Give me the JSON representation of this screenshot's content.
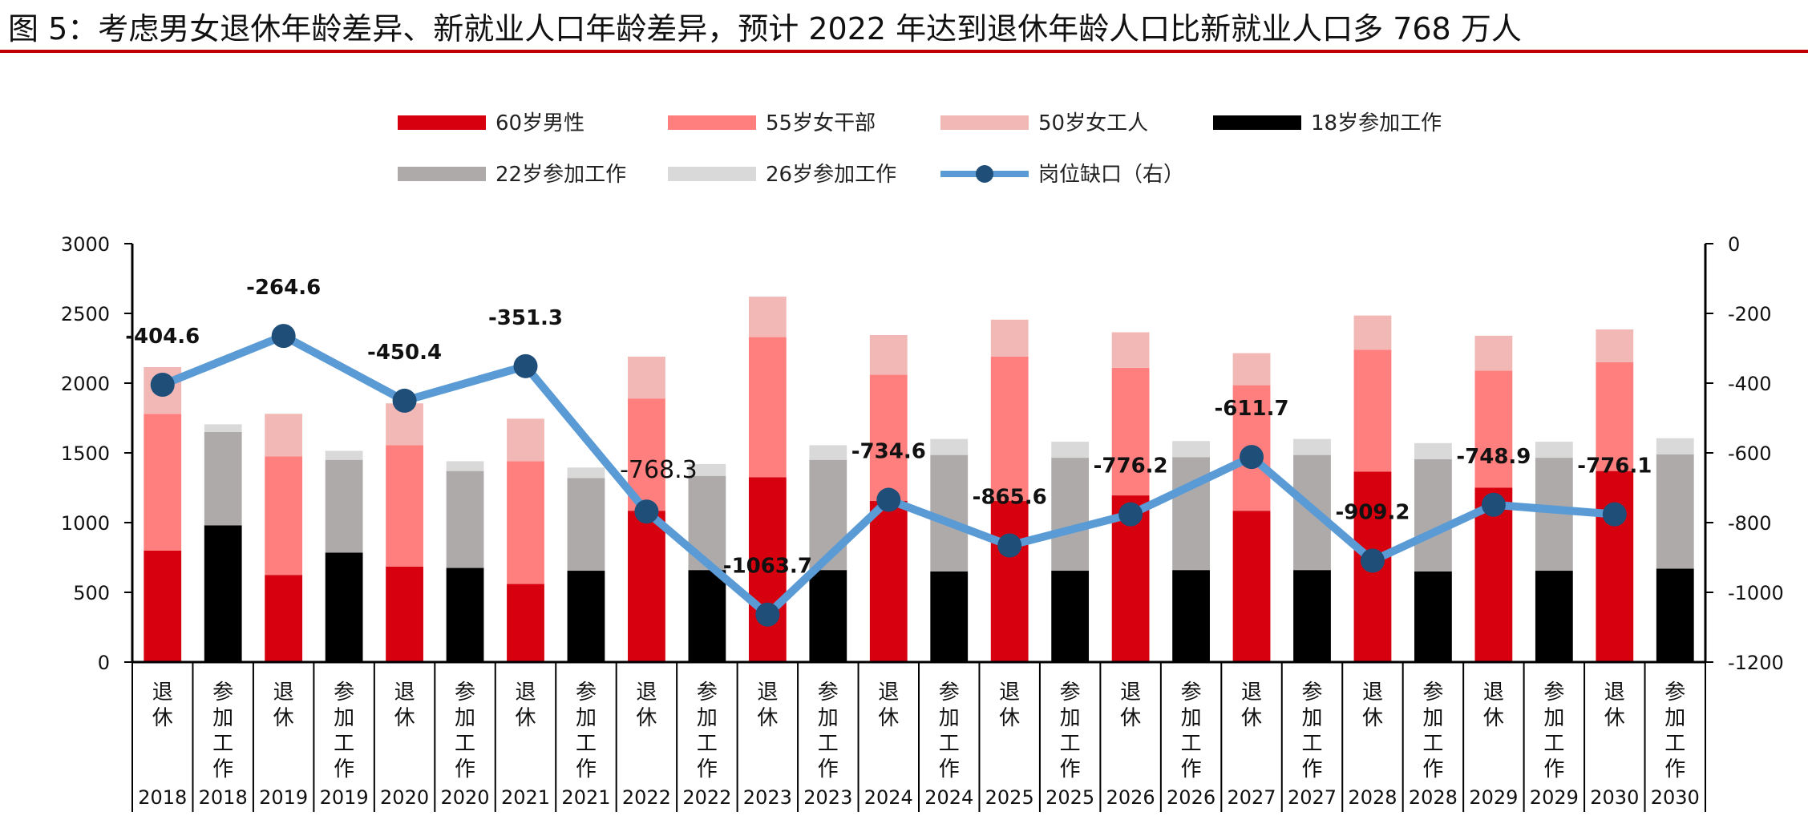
{
  "title": "图 5：考虑男女退休年龄差异、新就业人口年龄差异，预计 2022 年达到退休年龄人口比新就业人口多 768 万人",
  "chart_data": {
    "type": "bar",
    "stacked": true,
    "categories": [
      {
        "label": "退休",
        "year": "2018"
      },
      {
        "label": "参加工作",
        "year": "2018"
      },
      {
        "label": "退休",
        "year": "2019"
      },
      {
        "label": "参加工作",
        "year": "2019"
      },
      {
        "label": "退休",
        "year": "2020"
      },
      {
        "label": "参加工作",
        "year": "2020"
      },
      {
        "label": "退休",
        "year": "2021"
      },
      {
        "label": "参加工作",
        "year": "2021"
      },
      {
        "label": "退休",
        "year": "2022"
      },
      {
        "label": "参加工作",
        "year": "2022"
      },
      {
        "label": "退休",
        "year": "2023"
      },
      {
        "label": "参加工作",
        "year": "2023"
      },
      {
        "label": "退休",
        "year": "2024"
      },
      {
        "label": "参加工作",
        "year": "2024"
      },
      {
        "label": "退休",
        "year": "2025"
      },
      {
        "label": "参加工作",
        "year": "2025"
      },
      {
        "label": "退休",
        "year": "2026"
      },
      {
        "label": "参加工作",
        "year": "2026"
      },
      {
        "label": "退休",
        "year": "2027"
      },
      {
        "label": "参加工作",
        "year": "2027"
      },
      {
        "label": "退休",
        "year": "2028"
      },
      {
        "label": "参加工作",
        "year": "2028"
      },
      {
        "label": "退休",
        "year": "2029"
      },
      {
        "label": "参加工作",
        "year": "2029"
      },
      {
        "label": "退休",
        "year": "2030"
      },
      {
        "label": "参加工作",
        "year": "2030"
      }
    ],
    "series": [
      {
        "name": "60岁男性",
        "color": "#d7000f",
        "values": [
          800,
          0,
          625,
          0,
          685,
          0,
          560,
          0,
          1085,
          0,
          1325,
          0,
          1155,
          0,
          1155,
          0,
          1195,
          0,
          1085,
          0,
          1365,
          0,
          1250,
          0,
          1370,
          0
        ]
      },
      {
        "name": "55岁女干部",
        "color": "#ff7f7f",
        "values": [
          980,
          0,
          850,
          0,
          870,
          0,
          880,
          0,
          805,
          0,
          1005,
          0,
          905,
          0,
          1035,
          0,
          915,
          0,
          900,
          0,
          875,
          0,
          840,
          0,
          780,
          0
        ]
      },
      {
        "name": "50岁女工人",
        "color": "#f2b8b6",
        "values": [
          335,
          0,
          305,
          0,
          300,
          0,
          305,
          0,
          300,
          0,
          290,
          0,
          285,
          0,
          265,
          0,
          255,
          0,
          230,
          0,
          245,
          0,
          250,
          0,
          235,
          0
        ]
      },
      {
        "name": "18岁参加工作",
        "color": "#000000",
        "values": [
          0,
          980,
          0,
          785,
          0,
          675,
          0,
          655,
          0,
          660,
          0,
          660,
          0,
          650,
          0,
          655,
          0,
          660,
          0,
          660,
          0,
          650,
          0,
          655,
          0,
          670
        ]
      },
      {
        "name": "22岁参加工作",
        "color": "#aeaaaa",
        "values": [
          0,
          670,
          0,
          665,
          0,
          695,
          0,
          665,
          0,
          675,
          0,
          790,
          0,
          835,
          0,
          810,
          0,
          810,
          0,
          825,
          0,
          805,
          0,
          810,
          0,
          820
        ]
      },
      {
        "name": "26岁参加工作",
        "color": "#d9d9d9",
        "values": [
          0,
          55,
          0,
          65,
          0,
          70,
          0,
          75,
          0,
          85,
          0,
          105,
          0,
          115,
          0,
          115,
          0,
          115,
          0,
          115,
          0,
          115,
          0,
          115,
          0,
          115
        ]
      }
    ],
    "line": {
      "name": "岗位缺口（右）",
      "color": "#5b9bd5",
      "axis": "right",
      "x_index": [
        0,
        2,
        4,
        6,
        8,
        10,
        12,
        14,
        16,
        18,
        20,
        22,
        24
      ],
      "values": [
        -404.6,
        -264.6,
        -450.4,
        -351.3,
        -768.3,
        -1063.7,
        -734.6,
        -865.6,
        -776.2,
        -611.7,
        -909.2,
        -748.9,
        -776.1
      ],
      "labels": [
        "-404.6",
        "-264.6",
        "-450.4",
        "-351.3",
        "-768.3",
        "-1063.7",
        "-734.6",
        "-865.6",
        "-776.2",
        "-611.7",
        "-909.2",
        "-748.9",
        "-776.1"
      ]
    },
    "y_left": {
      "min": 0,
      "max": 3000,
      "ticks": [
        "0",
        "500",
        "1000",
        "1500",
        "2000",
        "2500",
        "3000"
      ]
    },
    "y_right": {
      "min": -1200,
      "max": 0,
      "ticks": [
        "-1200",
        "-1000",
        "-800",
        "-600",
        "-400",
        "-200",
        "0"
      ]
    },
    "legend": [
      {
        "name": "60岁男性",
        "kind": "bar",
        "color": "#d7000f"
      },
      {
        "name": "55岁女干部",
        "kind": "bar",
        "color": "#ff7f7f"
      },
      {
        "name": "50岁女工人",
        "kind": "bar",
        "color": "#f2b8b6"
      },
      {
        "name": "18岁参加工作",
        "kind": "bar",
        "color": "#000000"
      },
      {
        "name": "22岁参加工作",
        "kind": "bar",
        "color": "#aeaaaa"
      },
      {
        "name": "26岁参加工作",
        "kind": "bar",
        "color": "#d9d9d9"
      },
      {
        "name": "岗位缺口（右）",
        "kind": "line",
        "color": "#5b9bd5"
      }
    ]
  }
}
